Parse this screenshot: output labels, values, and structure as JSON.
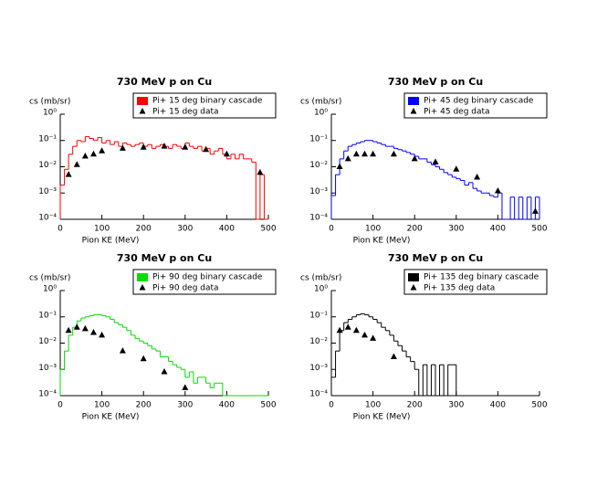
{
  "chart_data": [
    {
      "type": "histogram",
      "title": "730 MeV p on Cu",
      "xlabel": "Pion KE (MeV)",
      "ylabel": "cs (mb/sr)",
      "xlim": [
        0,
        500
      ],
      "ylim": [
        0.0001,
        1
      ],
      "log_y": true,
      "xticks": [
        0,
        100,
        200,
        300,
        400,
        500
      ],
      "yticks": [
        {
          "value": 0.0001,
          "label": "10⁻⁴"
        },
        {
          "value": 0.001,
          "label": "10⁻³"
        },
        {
          "value": 0.01,
          "label": "10⁻²"
        },
        {
          "value": 0.1,
          "label": "10⁻¹"
        },
        {
          "value": 1,
          "label": "10⁰"
        }
      ],
      "bins": [
        0,
        10,
        20,
        30,
        40,
        50,
        60,
        70,
        80,
        90,
        100,
        110,
        120,
        130,
        140,
        150,
        160,
        170,
        180,
        190,
        200,
        210,
        220,
        230,
        240,
        250,
        260,
        270,
        280,
        290,
        300,
        310,
        320,
        330,
        340,
        350,
        360,
        370,
        380,
        390,
        400,
        410,
        420,
        430,
        440,
        450,
        460,
        470,
        480,
        490,
        500
      ],
      "series": [
        {
          "name": "Pi+ 15 deg binary cascade",
          "color": "#ff0000",
          "values": [
            0.002,
            0.008,
            0.03,
            0.06,
            0.1,
            0.09,
            0.14,
            0.12,
            0.1,
            0.13,
            0.08,
            0.1,
            0.07,
            0.09,
            0.06,
            0.08,
            0.07,
            0.06,
            0.07,
            0.08,
            0.06,
            0.07,
            0.05,
            0.06,
            0.07,
            0.06,
            0.05,
            0.07,
            0.06,
            0.05,
            0.08,
            0.06,
            0.05,
            0.06,
            0.04,
            0.05,
            0.03,
            0.04,
            0.05,
            0.03,
            0.02,
            0.03,
            0.02,
            0.03,
            0.02,
            0.02,
            0.015,
            0.0001,
            0.005,
            0
          ]
        },
        {
          "name": "Pi+ 15 deg data",
          "color": "#000000",
          "x": [
            20,
            40,
            60,
            80,
            100,
            150,
            200,
            250,
            300,
            350,
            400,
            480
          ],
          "values": [
            0.005,
            0.012,
            0.025,
            0.03,
            0.04,
            0.05,
            0.055,
            0.06,
            0.055,
            0.045,
            0.03,
            0.006
          ]
        }
      ]
    },
    {
      "type": "histogram",
      "title": "730 MeV p on Cu",
      "xlabel": "Pion KE (MeV)",
      "ylabel": "cs (mb/sr)",
      "xlim": [
        0,
        500
      ],
      "ylim": [
        0.0001,
        1
      ],
      "log_y": true,
      "xticks": [
        0,
        100,
        200,
        300,
        400,
        500
      ],
      "yticks": [
        {
          "value": 0.0001,
          "label": "10⁻⁴"
        },
        {
          "value": 0.001,
          "label": "10⁻³"
        },
        {
          "value": 0.01,
          "label": "10⁻²"
        },
        {
          "value": 0.1,
          "label": "10⁻¹"
        },
        {
          "value": 1,
          "label": "10⁰"
        }
      ],
      "bins": [
        0,
        10,
        20,
        30,
        40,
        50,
        60,
        70,
        80,
        90,
        100,
        110,
        120,
        130,
        140,
        150,
        160,
        170,
        180,
        190,
        200,
        210,
        220,
        230,
        240,
        250,
        260,
        270,
        280,
        290,
        300,
        310,
        320,
        330,
        340,
        350,
        360,
        370,
        380,
        390,
        400,
        410,
        420,
        430,
        440,
        450,
        460,
        470,
        480,
        490,
        500
      ],
      "series": [
        {
          "name": "Pi+ 45 deg binary cascade",
          "color": "#0000ff",
          "values": [
            0.0008,
            0.005,
            0.02,
            0.04,
            0.06,
            0.07,
            0.08,
            0.09,
            0.1,
            0.1,
            0.09,
            0.08,
            0.07,
            0.06,
            0.06,
            0.05,
            0.045,
            0.04,
            0.035,
            0.03,
            0.025,
            0.02,
            0.02,
            0.015,
            0.012,
            0.01,
            0.008,
            0.006,
            0.005,
            0.004,
            0.0035,
            0.003,
            0.002,
            0.0025,
            0.0015,
            0.0012,
            0.001,
            0.001,
            0.0008,
            0.0007,
            0.001,
            0,
            0,
            0.0007,
            0,
            0.0007,
            0,
            0.0007,
            0,
            0.0007
          ]
        },
        {
          "name": "Pi+ 45 deg data",
          "color": "#000000",
          "x": [
            20,
            40,
            60,
            80,
            100,
            150,
            200,
            250,
            300,
            350,
            400,
            490
          ],
          "values": [
            0.01,
            0.02,
            0.03,
            0.03,
            0.03,
            0.03,
            0.02,
            0.015,
            0.008,
            0.004,
            0.0012,
            0.0002
          ]
        }
      ]
    },
    {
      "type": "histogram",
      "title": "730 MeV p on Cu",
      "xlabel": "Pion KE (MeV)",
      "ylabel": "cs (mb/sr)",
      "xlim": [
        0,
        500
      ],
      "ylim": [
        0.0001,
        1
      ],
      "log_y": true,
      "xticks": [
        0,
        100,
        200,
        300,
        400,
        500
      ],
      "yticks": [
        {
          "value": 0.0001,
          "label": "10⁻⁴"
        },
        {
          "value": 0.001,
          "label": "10⁻³"
        },
        {
          "value": 0.01,
          "label": "10⁻²"
        },
        {
          "value": 0.1,
          "label": "10⁻¹"
        },
        {
          "value": 1,
          "label": "10⁰"
        }
      ],
      "bins": [
        0,
        10,
        20,
        30,
        40,
        50,
        60,
        70,
        80,
        90,
        100,
        110,
        120,
        130,
        140,
        150,
        160,
        170,
        180,
        190,
        200,
        210,
        220,
        230,
        240,
        250,
        260,
        270,
        280,
        290,
        300,
        310,
        320,
        330,
        340,
        350,
        360,
        370,
        380,
        390,
        400,
        410,
        420,
        430,
        440,
        450,
        460,
        470,
        480,
        490,
        500
      ],
      "series": [
        {
          "name": "Pi+ 90 deg binary cascade",
          "color": "#00dd00",
          "values": [
            0.001,
            0.005,
            0.02,
            0.04,
            0.07,
            0.09,
            0.1,
            0.11,
            0.12,
            0.12,
            0.11,
            0.1,
            0.08,
            0.06,
            0.05,
            0.04,
            0.03,
            0.02,
            0.015,
            0.012,
            0.01,
            0.008,
            0.006,
            0.005,
            0.003,
            0.003,
            0.002,
            0.0015,
            0.0012,
            0.001,
            0.0005,
            0.0008,
            0.0003,
            0.0005,
            0.0005,
            0.0003,
            0.0002,
            0.0003,
            0.0003,
            0,
            0,
            0,
            0,
            0,
            0,
            0,
            0,
            0,
            0,
            0
          ]
        },
        {
          "name": "Pi+ 90 deg data",
          "color": "#000000",
          "x": [
            20,
            40,
            60,
            80,
            100,
            150,
            200,
            250,
            300
          ],
          "values": [
            0.03,
            0.04,
            0.035,
            0.025,
            0.02,
            0.005,
            0.0025,
            0.0008,
            0.0002
          ]
        }
      ]
    },
    {
      "type": "histogram",
      "title": "730 MeV p on Cu",
      "xlabel": "Pion KE (MeV)",
      "ylabel": "cs (mb/sr)",
      "xlim": [
        0,
        500
      ],
      "ylim": [
        0.0001,
        1
      ],
      "log_y": true,
      "xticks": [
        0,
        100,
        200,
        300,
        400,
        500
      ],
      "yticks": [
        {
          "value": 0.0001,
          "label": "10⁻⁴"
        },
        {
          "value": 0.001,
          "label": "10⁻³"
        },
        {
          "value": 0.01,
          "label": "10⁻²"
        },
        {
          "value": 0.1,
          "label": "10⁻¹"
        },
        {
          "value": 1,
          "label": "10⁰"
        }
      ],
      "bins": [
        0,
        10,
        20,
        30,
        40,
        50,
        60,
        70,
        80,
        90,
        100,
        110,
        120,
        130,
        140,
        150,
        160,
        170,
        180,
        190,
        200,
        210,
        220,
        230,
        240,
        250,
        260,
        270,
        280,
        290,
        300,
        310,
        320,
        330,
        340,
        350,
        360,
        370,
        380,
        390,
        400,
        410,
        420,
        430,
        440,
        450,
        460,
        470,
        480,
        490,
        500
      ],
      "series": [
        {
          "name": "Pi+ 135 deg binary cascade",
          "color": "#000000",
          "values": [
            0.0005,
            0.005,
            0.03,
            0.06,
            0.08,
            0.1,
            0.12,
            0.13,
            0.12,
            0.1,
            0.08,
            0.06,
            0.04,
            0.03,
            0.02,
            0.012,
            0.008,
            0.005,
            0.003,
            0.002,
            0.001,
            0,
            0.0015,
            0,
            0.0015,
            0,
            0.0015,
            0,
            0.0015,
            0.0015,
            0,
            0,
            0,
            0,
            0,
            0,
            0,
            0,
            0,
            0,
            0,
            0,
            0,
            0,
            0,
            0,
            0,
            0,
            0,
            0
          ]
        },
        {
          "name": "Pi+ 135 deg data",
          "color": "#000000",
          "x": [
            20,
            40,
            60,
            80,
            100,
            150
          ],
          "values": [
            0.03,
            0.04,
            0.03,
            0.02,
            0.015,
            0.003
          ]
        }
      ]
    }
  ]
}
